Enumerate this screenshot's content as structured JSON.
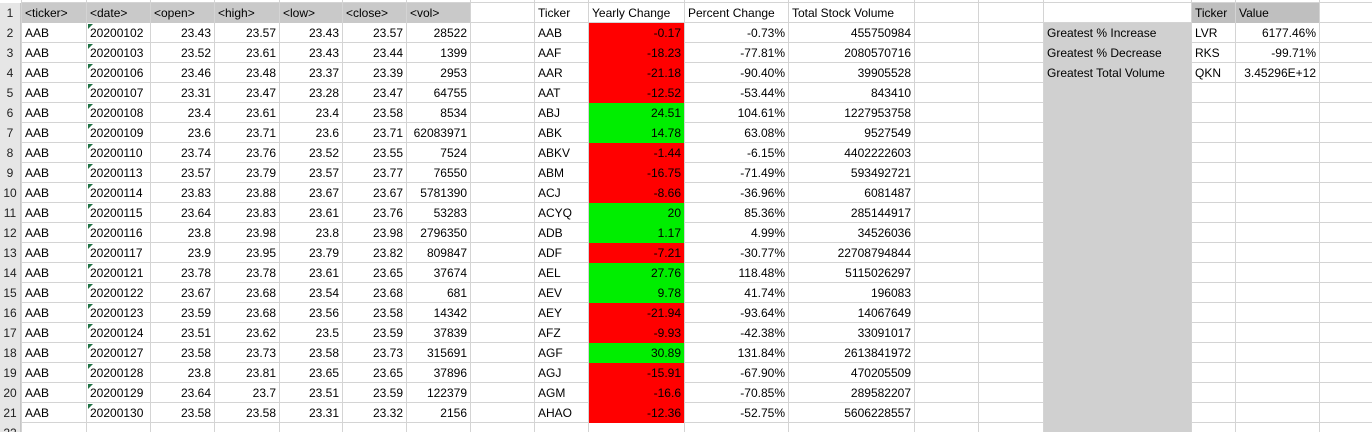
{
  "colors": {
    "positive": "#00ee00",
    "negative": "#ff0000",
    "header": "#c9c9c9",
    "grid": "#d4d4d4"
  },
  "headers": [
    "<ticker>",
    "<date>",
    "<open>",
    "<high>",
    "<low>",
    "<close>",
    "<vol>"
  ],
  "rows": [
    [
      "AAB",
      "20200102",
      "23.43",
      "23.57",
      "23.43",
      "23.57",
      "28522"
    ],
    [
      "AAB",
      "20200103",
      "23.52",
      "23.61",
      "23.43",
      "23.44",
      "1399"
    ],
    [
      "AAB",
      "20200106",
      "23.46",
      "23.48",
      "23.37",
      "23.39",
      "2953"
    ],
    [
      "AAB",
      "20200107",
      "23.31",
      "23.47",
      "23.28",
      "23.47",
      "64755"
    ],
    [
      "AAB",
      "20200108",
      "23.4",
      "23.61",
      "23.4",
      "23.58",
      "8534"
    ],
    [
      "AAB",
      "20200109",
      "23.6",
      "23.71",
      "23.6",
      "23.71",
      "62083971"
    ],
    [
      "AAB",
      "20200110",
      "23.74",
      "23.76",
      "23.52",
      "23.55",
      "7524"
    ],
    [
      "AAB",
      "20200113",
      "23.57",
      "23.79",
      "23.57",
      "23.77",
      "76550"
    ],
    [
      "AAB",
      "20200114",
      "23.83",
      "23.88",
      "23.67",
      "23.67",
      "5781390"
    ],
    [
      "AAB",
      "20200115",
      "23.64",
      "23.83",
      "23.61",
      "23.76",
      "53283"
    ],
    [
      "AAB",
      "20200116",
      "23.8",
      "23.98",
      "23.8",
      "23.98",
      "2796350"
    ],
    [
      "AAB",
      "20200117",
      "23.9",
      "23.95",
      "23.79",
      "23.82",
      "809847"
    ],
    [
      "AAB",
      "20200121",
      "23.78",
      "23.78",
      "23.61",
      "23.65",
      "37674"
    ],
    [
      "AAB",
      "20200122",
      "23.67",
      "23.68",
      "23.54",
      "23.68",
      "681"
    ],
    [
      "AAB",
      "20200123",
      "23.59",
      "23.68",
      "23.56",
      "23.58",
      "14342"
    ],
    [
      "AAB",
      "20200124",
      "23.51",
      "23.62",
      "23.5",
      "23.59",
      "37839"
    ],
    [
      "AAB",
      "20200127",
      "23.58",
      "23.73",
      "23.58",
      "23.73",
      "315691"
    ],
    [
      "AAB",
      "20200128",
      "23.8",
      "23.81",
      "23.65",
      "23.65",
      "37896"
    ],
    [
      "AAB",
      "20200129",
      "23.64",
      "23.7",
      "23.51",
      "23.59",
      "122379"
    ],
    [
      "AAB",
      "20200130",
      "23.58",
      "23.58",
      "23.31",
      "23.32",
      "2156"
    ]
  ],
  "summary": {
    "headers": [
      "Ticker",
      "Yearly Change",
      "Percent Change",
      "Total Stock Volume"
    ],
    "rows": [
      [
        "AAB",
        "-0.17",
        "-0.73%",
        "455750984",
        "negative"
      ],
      [
        "AAF",
        "-18.23",
        "-77.81%",
        "2080570716",
        "negative"
      ],
      [
        "AAR",
        "-21.18",
        "-90.40%",
        "39905528",
        "negative"
      ],
      [
        "AAT",
        "-12.52",
        "-53.44%",
        "843410",
        "negative"
      ],
      [
        "ABJ",
        "24.51",
        "104.61%",
        "1227953758",
        "positive"
      ],
      [
        "ABK",
        "14.78",
        "63.08%",
        "9527549",
        "positive"
      ],
      [
        "ABKV",
        "-1.44",
        "-6.15%",
        "4402222603",
        "negative"
      ],
      [
        "ABM",
        "-16.75",
        "-71.49%",
        "593492721",
        "negative"
      ],
      [
        "ACJ",
        "-8.66",
        "-36.96%",
        "6081487",
        "negative"
      ],
      [
        "ACYQ",
        "20",
        "85.36%",
        "285144917",
        "positive"
      ],
      [
        "ADB",
        "1.17",
        "4.99%",
        "34526036",
        "positive"
      ],
      [
        "ADF",
        "-7.21",
        "-30.77%",
        "22708794844",
        "negative"
      ],
      [
        "AEL",
        "27.76",
        "118.48%",
        "5115026297",
        "positive"
      ],
      [
        "AEV",
        "9.78",
        "41.74%",
        "196083",
        "positive"
      ],
      [
        "AEY",
        "-21.94",
        "-93.64%",
        "14067649",
        "negative"
      ],
      [
        "AFZ",
        "-9.93",
        "-42.38%",
        "33091017",
        "negative"
      ],
      [
        "AGF",
        "30.89",
        "131.84%",
        "2613841972",
        "positive"
      ],
      [
        "AGJ",
        "-15.91",
        "-67.90%",
        "470205509",
        "negative"
      ],
      [
        "AGM",
        "-16.6",
        "-70.85%",
        "289582207",
        "negative"
      ],
      [
        "AHAO",
        "-12.36",
        "-52.75%",
        "5606228557",
        "negative"
      ]
    ]
  },
  "greatest": {
    "headers": [
      "Ticker",
      "Value"
    ],
    "rows": [
      [
        "Greatest % Increase",
        "LVR",
        "6177.46%"
      ],
      [
        "Greatest % Decrease",
        "RKS",
        "-99.71%"
      ],
      [
        "Greatest Total Volume",
        "QKN",
        "3.45296E+12"
      ]
    ]
  }
}
